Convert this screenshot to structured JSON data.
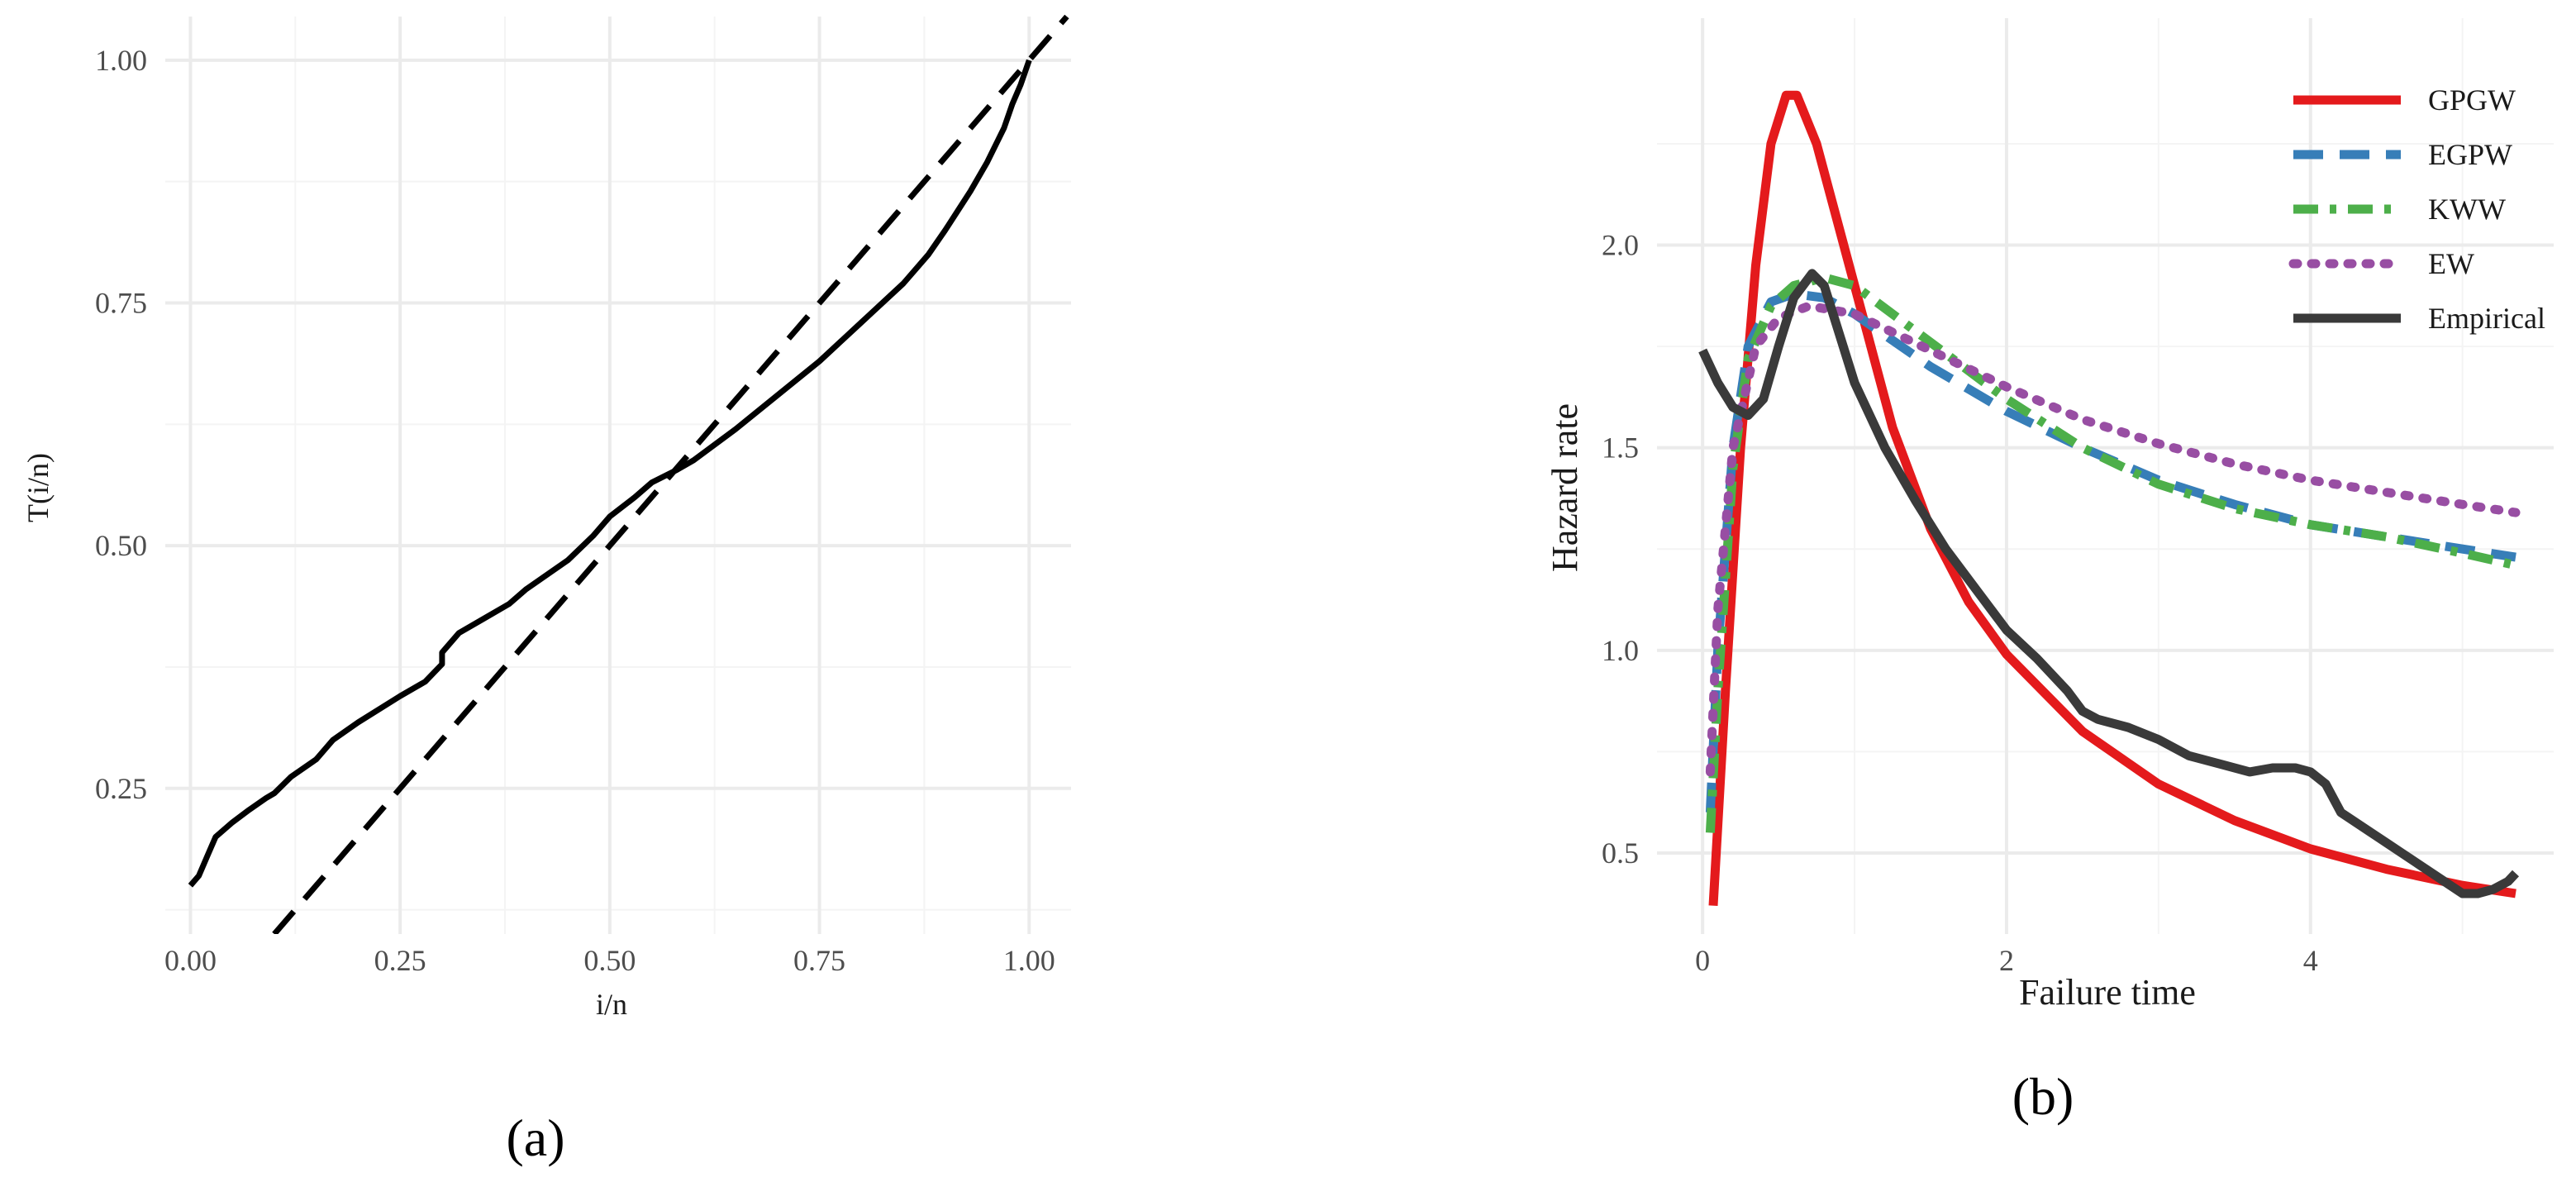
{
  "panels": {
    "a": {
      "label": "(a)"
    },
    "b": {
      "label": "(b)"
    }
  },
  "chart_data": [
    {
      "type": "line",
      "xlabel": "i/n",
      "ylabel": "T(i/n)",
      "xlim": [
        -0.03,
        1.05
      ],
      "ylim": [
        0.1,
        1.045
      ],
      "grid": true,
      "x_ticks": [
        0,
        0.25,
        0.5,
        0.75,
        1
      ],
      "x_tick_labels": [
        "0.00",
        "0.25",
        "0.50",
        "0.75",
        "1.00"
      ],
      "y_ticks": [
        0.25,
        0.5,
        0.75,
        1
      ],
      "y_tick_labels": [
        "0.25",
        "0.50",
        "0.75",
        "1.00"
      ],
      "series": [
        {
          "style": "solid",
          "color": "#000000",
          "points": [
            [
              0.0,
              0.15
            ],
            [
              0.01,
              0.16
            ],
            [
              0.02,
              0.18
            ],
            [
              0.03,
              0.2
            ],
            [
              0.05,
              0.215
            ],
            [
              0.07,
              0.228
            ],
            [
              0.09,
              0.24
            ],
            [
              0.1,
              0.245
            ],
            [
              0.12,
              0.262
            ],
            [
              0.15,
              0.28
            ],
            [
              0.17,
              0.3
            ],
            [
              0.2,
              0.318
            ],
            [
              0.25,
              0.345
            ],
            [
              0.28,
              0.36
            ],
            [
              0.3,
              0.378
            ],
            [
              0.3,
              0.39
            ],
            [
              0.32,
              0.41
            ],
            [
              0.35,
              0.425
            ],
            [
              0.38,
              0.44
            ],
            [
              0.4,
              0.455
            ],
            [
              0.45,
              0.485
            ],
            [
              0.48,
              0.51
            ],
            [
              0.5,
              0.53
            ],
            [
              0.53,
              0.55
            ],
            [
              0.55,
              0.565
            ],
            [
              0.58,
              0.578
            ],
            [
              0.6,
              0.588
            ],
            [
              0.65,
              0.62
            ],
            [
              0.7,
              0.655
            ],
            [
              0.75,
              0.69
            ],
            [
              0.8,
              0.73
            ],
            [
              0.85,
              0.77
            ],
            [
              0.88,
              0.8
            ],
            [
              0.9,
              0.825
            ],
            [
              0.93,
              0.865
            ],
            [
              0.95,
              0.895
            ],
            [
              0.97,
              0.93
            ],
            [
              0.98,
              0.955
            ],
            [
              0.99,
              0.975
            ],
            [
              1.0,
              1.0
            ]
          ]
        },
        {
          "style": "dashed",
          "color": "#000000",
          "points": [
            [
              0.1,
              0.1
            ],
            [
              1.045,
              1.045
            ]
          ]
        }
      ]
    },
    {
      "type": "line",
      "xlabel": "Failure time",
      "ylabel": "Hazard rate",
      "xlim": [
        -0.3,
        5.6
      ],
      "ylim": [
        0.3,
        2.56
      ],
      "grid": true,
      "legend_position": "top-right",
      "x_ticks": [
        0,
        2,
        4
      ],
      "x_tick_labels": [
        "0",
        "2",
        "4"
      ],
      "y_ticks": [
        0.5,
        1.0,
        1.5,
        2.0
      ],
      "y_tick_labels": [
        "0.5",
        "1.0",
        "1.5",
        "2.0"
      ],
      "series": [
        {
          "name": "GPGW",
          "color": "#e41a1c",
          "style": "solid",
          "points": [
            [
              0.07,
              0.37
            ],
            [
              0.15,
              0.9
            ],
            [
              0.25,
              1.5
            ],
            [
              0.35,
              1.95
            ],
            [
              0.45,
              2.25
            ],
            [
              0.55,
              2.37
            ],
            [
              0.62,
              2.37
            ],
            [
              0.75,
              2.25
            ],
            [
              1.0,
              1.9
            ],
            [
              1.25,
              1.55
            ],
            [
              1.5,
              1.3
            ],
            [
              1.75,
              1.12
            ],
            [
              2.0,
              0.99
            ],
            [
              2.5,
              0.8
            ],
            [
              3.0,
              0.67
            ],
            [
              3.5,
              0.58
            ],
            [
              4.0,
              0.51
            ],
            [
              4.5,
              0.46
            ],
            [
              5.0,
              0.42
            ],
            [
              5.35,
              0.4
            ]
          ]
        },
        {
          "name": "EGPW",
          "color": "#377eb8",
          "style": "dashed",
          "points": [
            [
              0.05,
              0.6
            ],
            [
              0.1,
              1.0
            ],
            [
              0.2,
              1.5
            ],
            [
              0.3,
              1.75
            ],
            [
              0.45,
              1.86
            ],
            [
              0.6,
              1.88
            ],
            [
              0.8,
              1.87
            ],
            [
              1.0,
              1.83
            ],
            [
              1.5,
              1.7
            ],
            [
              2.0,
              1.59
            ],
            [
              2.5,
              1.5
            ],
            [
              3.0,
              1.42
            ],
            [
              3.5,
              1.36
            ],
            [
              4.0,
              1.31
            ],
            [
              4.5,
              1.28
            ],
            [
              5.0,
              1.25
            ],
            [
              5.35,
              1.23
            ]
          ]
        },
        {
          "name": "KWW",
          "color": "#4daf4a",
          "style": "dashdot",
          "points": [
            [
              0.05,
              0.55
            ],
            [
              0.1,
              0.9
            ],
            [
              0.2,
              1.45
            ],
            [
              0.3,
              1.72
            ],
            [
              0.45,
              1.85
            ],
            [
              0.6,
              1.9
            ],
            [
              0.8,
              1.92
            ],
            [
              1.0,
              1.9
            ],
            [
              1.5,
              1.76
            ],
            [
              2.0,
              1.62
            ],
            [
              2.5,
              1.5
            ],
            [
              3.0,
              1.41
            ],
            [
              3.5,
              1.35
            ],
            [
              4.0,
              1.31
            ],
            [
              4.5,
              1.28
            ],
            [
              5.0,
              1.24
            ],
            [
              5.35,
              1.21
            ]
          ]
        },
        {
          "name": "EW",
          "color": "#984ea3",
          "style": "dotted",
          "points": [
            [
              0.05,
              0.7
            ],
            [
              0.1,
              1.1
            ],
            [
              0.2,
              1.5
            ],
            [
              0.35,
              1.75
            ],
            [
              0.5,
              1.82
            ],
            [
              0.7,
              1.85
            ],
            [
              1.0,
              1.83
            ],
            [
              1.5,
              1.74
            ],
            [
              2.0,
              1.65
            ],
            [
              2.5,
              1.57
            ],
            [
              3.0,
              1.51
            ],
            [
              3.5,
              1.46
            ],
            [
              4.0,
              1.42
            ],
            [
              4.5,
              1.39
            ],
            [
              5.0,
              1.36
            ],
            [
              5.35,
              1.34
            ]
          ]
        },
        {
          "name": "Empirical",
          "color": "#3a3a3a",
          "style": "solid",
          "points": [
            [
              0.0,
              1.74
            ],
            [
              0.1,
              1.66
            ],
            [
              0.2,
              1.6
            ],
            [
              0.3,
              1.58
            ],
            [
              0.4,
              1.62
            ],
            [
              0.5,
              1.75
            ],
            [
              0.6,
              1.87
            ],
            [
              0.72,
              1.93
            ],
            [
              0.8,
              1.9
            ],
            [
              0.9,
              1.78
            ],
            [
              1.0,
              1.66
            ],
            [
              1.2,
              1.5
            ],
            [
              1.4,
              1.37
            ],
            [
              1.6,
              1.25
            ],
            [
              1.8,
              1.15
            ],
            [
              2.0,
              1.05
            ],
            [
              2.2,
              0.98
            ],
            [
              2.4,
              0.9
            ],
            [
              2.5,
              0.85
            ],
            [
              2.6,
              0.83
            ],
            [
              2.8,
              0.81
            ],
            [
              3.0,
              0.78
            ],
            [
              3.2,
              0.74
            ],
            [
              3.4,
              0.72
            ],
            [
              3.6,
              0.7
            ],
            [
              3.75,
              0.71
            ],
            [
              3.9,
              0.71
            ],
            [
              4.0,
              0.7
            ],
            [
              4.1,
              0.67
            ],
            [
              4.2,
              0.6
            ],
            [
              4.4,
              0.55
            ],
            [
              4.6,
              0.5
            ],
            [
              4.8,
              0.45
            ],
            [
              5.0,
              0.4
            ],
            [
              5.1,
              0.4
            ],
            [
              5.2,
              0.41
            ],
            [
              5.3,
              0.43
            ],
            [
              5.35,
              0.45
            ]
          ]
        }
      ]
    }
  ]
}
